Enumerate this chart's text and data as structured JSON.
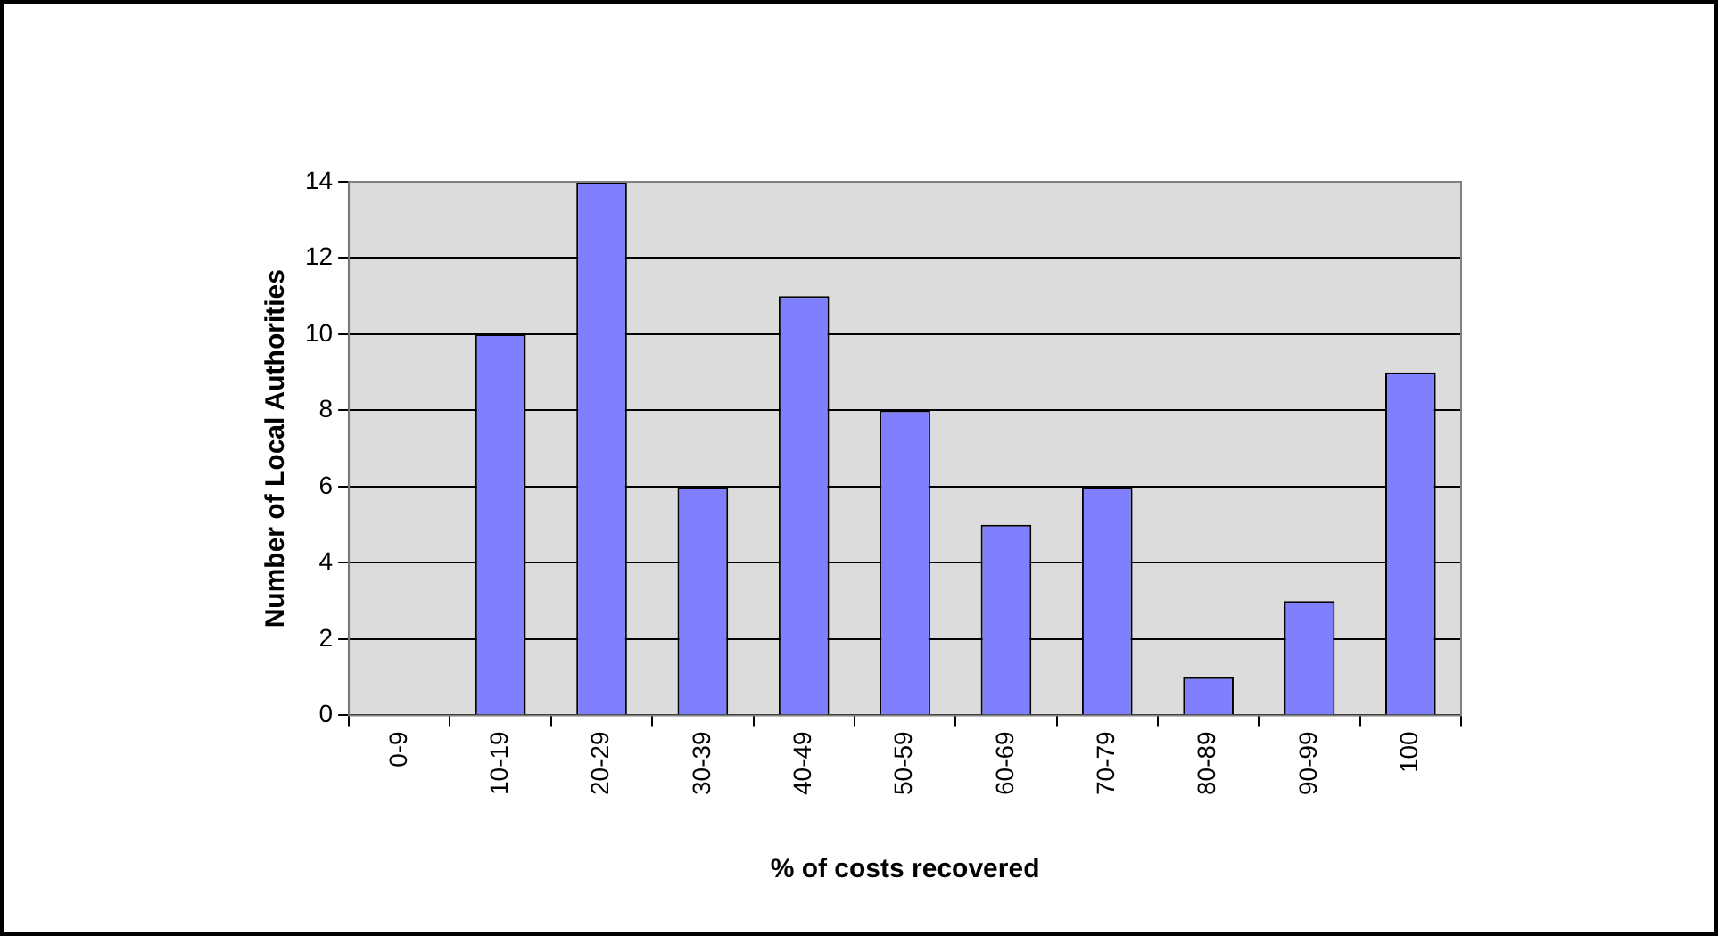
{
  "chart_data": {
    "type": "bar",
    "xlabel": "% of costs recovered",
    "ylabel": "Number of Local Authorities",
    "categories": [
      "0-9",
      "10-19",
      "20-29",
      "30-39",
      "40-49",
      "50-59",
      "60-69",
      "70-79",
      "80-89",
      "90-99",
      "100"
    ],
    "values": [
      0,
      10,
      14,
      6,
      11,
      8,
      5,
      6,
      1,
      3,
      9
    ],
    "color": "#8080ff",
    "ylim": [
      0,
      14
    ],
    "yticks": [
      0,
      2,
      4,
      6,
      8,
      10,
      12,
      14
    ],
    "grid": "y",
    "legend": false
  }
}
